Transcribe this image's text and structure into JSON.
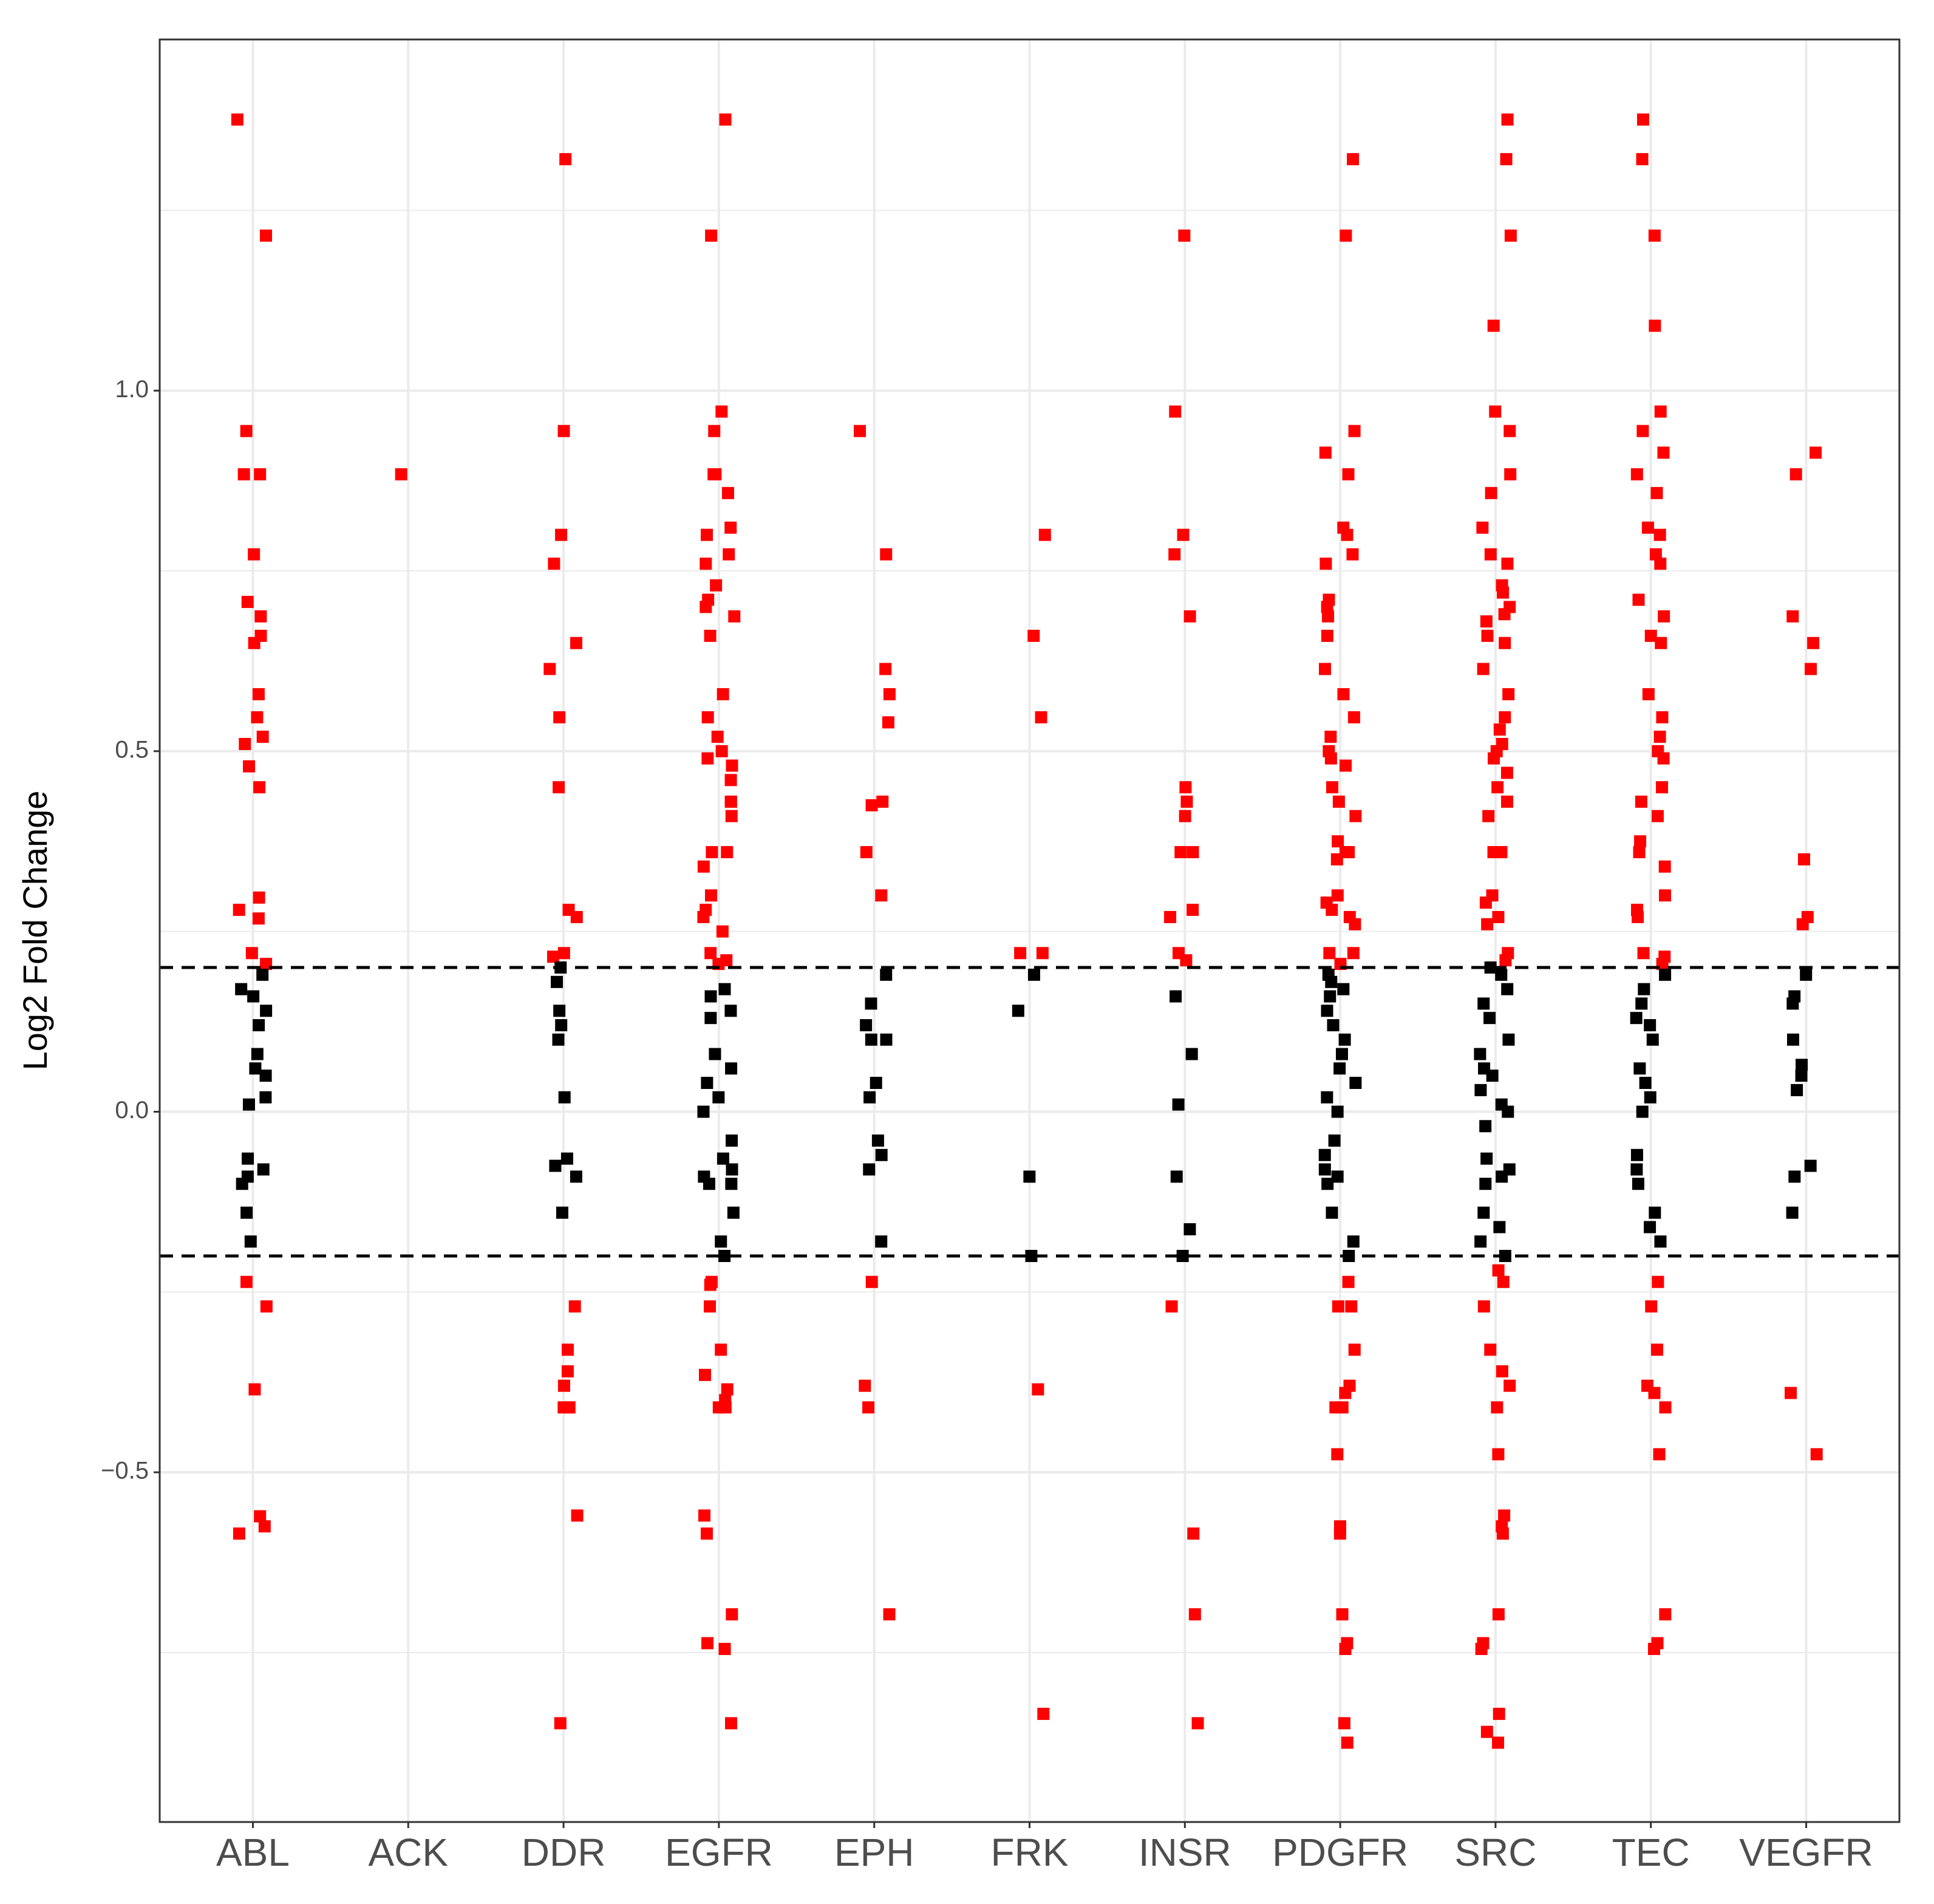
{
  "chart_data": {
    "type": "strip",
    "ylabel": "Log2 Fold Change",
    "categories": [
      "ABL",
      "ACK",
      "DDR",
      "EGFR",
      "EPH",
      "FRK",
      "INSR",
      "PDGFR",
      "SRC",
      "TEC",
      "VEGFR"
    ],
    "values": [
      [
        1.376,
        1.215,
        0.944,
        0.884,
        0.884,
        0.773,
        0.707,
        0.687,
        0.66,
        0.65,
        0.579,
        0.547,
        0.52,
        0.51,
        0.479,
        0.45,
        0.297,
        0.28,
        0.268,
        0.22,
        0.205,
        0.19,
        0.17,
        0.16,
        0.14,
        0.12,
        0.08,
        0.06,
        0.05,
        0.02,
        0.01,
        -0.065,
        -0.08,
        -0.09,
        -0.1,
        -0.14,
        -0.18,
        -0.236,
        -0.27,
        -0.385,
        -0.561,
        -0.575,
        -0.585
      ],
      [
        0.884
      ],
      [
        1.321,
        0.944,
        0.8,
        0.76,
        0.65,
        0.614,
        0.547,
        0.45,
        0.28,
        0.27,
        0.22,
        0.215,
        0.2,
        0.18,
        0.14,
        0.12,
        0.1,
        0.02,
        -0.065,
        -0.075,
        -0.09,
        -0.14,
        -0.27,
        -0.33,
        -0.36,
        -0.38,
        -0.41,
        -0.41,
        -0.56,
        -0.848
      ],
      [
        1.376,
        1.215,
        0.971,
        0.944,
        0.884,
        0.884,
        0.858,
        0.81,
        0.8,
        0.773,
        0.76,
        0.73,
        0.71,
        0.7,
        0.687,
        0.66,
        0.579,
        0.547,
        0.52,
        0.5,
        0.49,
        0.48,
        0.46,
        0.43,
        0.43,
        0.41,
        0.36,
        0.36,
        0.34,
        0.3,
        0.28,
        0.27,
        0.25,
        0.22,
        0.21,
        0.205,
        0.17,
        0.16,
        0.14,
        0.13,
        0.08,
        0.06,
        0.04,
        0.02,
        0.0,
        -0.04,
        -0.065,
        -0.08,
        -0.09,
        -0.1,
        -0.1,
        -0.14,
        -0.18,
        -0.2,
        -0.236,
        -0.24,
        -0.27,
        -0.33,
        -0.365,
        -0.385,
        -0.4,
        -0.41,
        -0.41,
        -0.56,
        -0.585,
        -0.697,
        -0.737,
        -0.745,
        -0.848
      ],
      [
        0.944,
        0.773,
        0.614,
        0.579,
        0.54,
        0.43,
        0.425,
        0.36,
        0.3,
        0.19,
        0.15,
        0.12,
        0.1,
        0.1,
        0.04,
        0.02,
        -0.04,
        -0.06,
        -0.08,
        -0.18,
        -0.236,
        -0.38,
        -0.41,
        -0.697
      ],
      [
        0.8,
        0.66,
        0.547,
        0.22,
        0.22,
        0.19,
        0.14,
        -0.09,
        -0.2,
        -0.385,
        -0.835
      ],
      [
        1.215,
        0.971,
        0.8,
        0.773,
        0.687,
        0.45,
        0.43,
        0.41,
        0.36,
        0.36,
        0.28,
        0.27,
        0.22,
        0.21,
        0.16,
        0.08,
        0.01,
        -0.09,
        -0.163,
        -0.2,
        -0.27,
        -0.585,
        -0.697,
        -0.848
      ],
      [
        1.321,
        1.215,
        0.944,
        0.914,
        0.884,
        0.81,
        0.8,
        0.773,
        0.76,
        0.71,
        0.7,
        0.687,
        0.66,
        0.614,
        0.579,
        0.547,
        0.52,
        0.5,
        0.49,
        0.48,
        0.45,
        0.43,
        0.41,
        0.375,
        0.36,
        0.36,
        0.35,
        0.3,
        0.29,
        0.28,
        0.27,
        0.26,
        0.22,
        0.22,
        0.205,
        0.19,
        0.18,
        0.17,
        0.16,
        0.14,
        0.12,
        0.1,
        0.08,
        0.06,
        0.04,
        0.02,
        0.0,
        -0.04,
        -0.06,
        -0.08,
        -0.09,
        -0.1,
        -0.14,
        -0.18,
        -0.2,
        -0.236,
        -0.27,
        -0.27,
        -0.33,
        -0.38,
        -0.39,
        -0.41,
        -0.41,
        -0.475,
        -0.575,
        -0.585,
        -0.697,
        -0.737,
        -0.745,
        -0.848,
        -0.875
      ],
      [
        1.376,
        1.321,
        1.215,
        1.09,
        0.971,
        0.944,
        0.884,
        0.858,
        0.81,
        0.773,
        0.76,
        0.73,
        0.72,
        0.7,
        0.69,
        0.68,
        0.66,
        0.65,
        0.614,
        0.579,
        0.547,
        0.53,
        0.51,
        0.5,
        0.49,
        0.47,
        0.45,
        0.43,
        0.41,
        0.36,
        0.36,
        0.3,
        0.29,
        0.27,
        0.26,
        0.22,
        0.21,
        0.2,
        0.19,
        0.17,
        0.15,
        0.13,
        0.1,
        0.08,
        0.06,
        0.05,
        0.03,
        0.01,
        0.0,
        -0.02,
        -0.065,
        -0.08,
        -0.09,
        -0.1,
        -0.14,
        -0.16,
        -0.18,
        -0.2,
        -0.22,
        -0.236,
        -0.27,
        -0.33,
        -0.36,
        -0.38,
        -0.41,
        -0.475,
        -0.56,
        -0.575,
        -0.585,
        -0.697,
        -0.737,
        -0.745,
        -0.835,
        -0.86,
        -0.875
      ],
      [
        1.376,
        1.321,
        1.215,
        1.09,
        0.971,
        0.944,
        0.914,
        0.884,
        0.858,
        0.81,
        0.8,
        0.773,
        0.76,
        0.71,
        0.687,
        0.66,
        0.65,
        0.579,
        0.547,
        0.52,
        0.5,
        0.49,
        0.45,
        0.43,
        0.41,
        0.375,
        0.36,
        0.34,
        0.3,
        0.28,
        0.27,
        0.22,
        0.215,
        0.205,
        0.19,
        0.17,
        0.15,
        0.13,
        0.12,
        0.1,
        0.06,
        0.04,
        0.02,
        0.0,
        -0.06,
        -0.08,
        -0.1,
        -0.14,
        -0.16,
        -0.18,
        -0.236,
        -0.27,
        -0.33,
        -0.38,
        -0.39,
        -0.41,
        -0.475,
        -0.697,
        -0.737,
        -0.745
      ],
      [
        0.914,
        0.884,
        0.687,
        0.65,
        0.614,
        0.35,
        0.27,
        0.26,
        0.19,
        0.16,
        0.15,
        0.1,
        0.065,
        0.05,
        0.03,
        -0.075,
        -0.09,
        -0.14,
        -0.39,
        -0.475
      ]
    ],
    "color": "#000000",
    "highlight_color": "#ff0000",
    "hlines": [
      0.2,
      -0.2
    ],
    "ylim": [
      -0.985,
      1.487
    ],
    "yticks": [
      {
        "value": -0.5,
        "label": "−0.5"
      },
      {
        "value": 0,
        "label": "0.0"
      },
      {
        "value": 0.5,
        "label": "0.5"
      },
      {
        "value": 1,
        "label": "1.0"
      }
    ],
    "minor_yticks": [
      -0.75,
      -0.25,
      0.25,
      0.75,
      1.25
    ],
    "grid": true
  }
}
